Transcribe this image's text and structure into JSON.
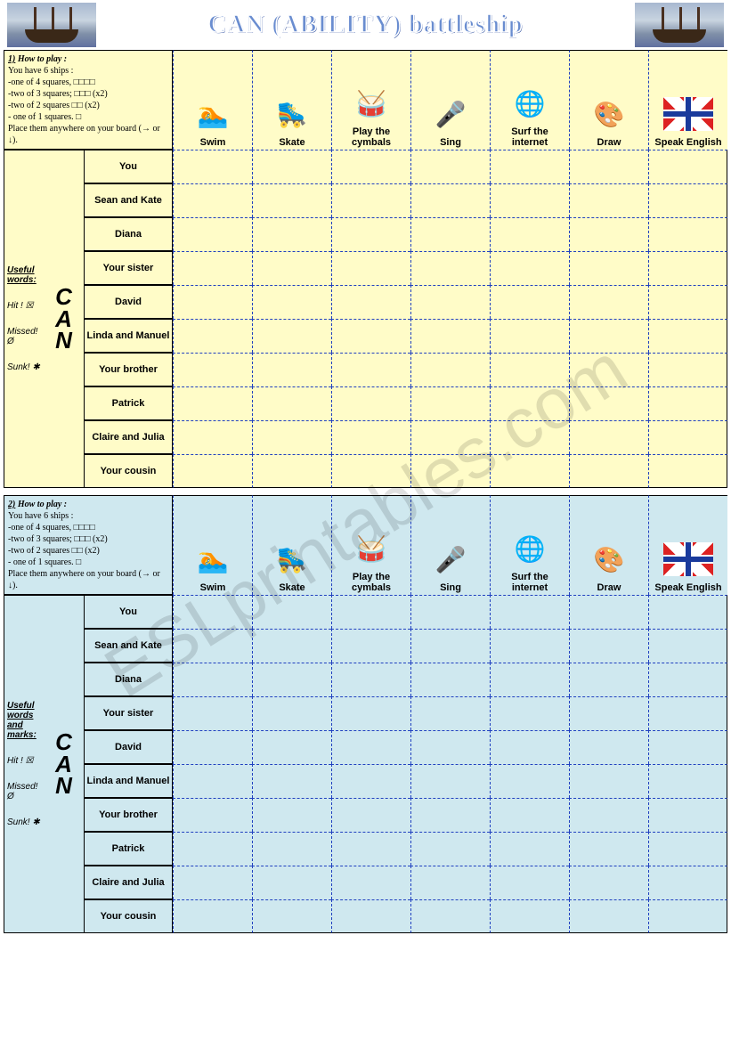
{
  "title": "CAN (ABILITY) battleship",
  "watermark": "ESLprintables.com",
  "activities": [
    {
      "label": "Swim",
      "icon": "🏊"
    },
    {
      "label": "Skate",
      "icon": "🛼"
    },
    {
      "label": "Play the cymbals",
      "icon": "🥁"
    },
    {
      "label": "Sing",
      "icon": "🎤"
    },
    {
      "label": "Surf the internet",
      "icon": "🌐"
    },
    {
      "label": "Draw",
      "icon": "🎨"
    },
    {
      "label": "Speak English",
      "icon": "flag"
    }
  ],
  "subjects": [
    "You",
    "Sean  and Kate",
    "Diana",
    "Your sister",
    "David",
    "Linda and Manuel",
    "Your brother",
    "Patrick",
    "Claire and Julia",
    "Your cousin"
  ],
  "cards": [
    {
      "num": "1)",
      "bg": "yellow",
      "instructions": [
        "How to play :",
        "You have 6 ships :",
        "-one of 4 squares, □□□□",
        "-two  of 3 squares; □□□ (x2)",
        "-two of  2 squares □□ (x2)",
        "- one  of 1 squares. □",
        "Place them anywhere on your board (→ or ↓)."
      ],
      "useful_label": "Useful words:",
      "useful": [
        "Hit ! ☒",
        "Missed! Ø",
        "Sunk! ✱"
      ]
    },
    {
      "num": "2)",
      "bg": "blue",
      "instructions": [
        "How to play :",
        "You have 6 ships :",
        "-one of 4 squares, □□□□",
        "-two  of 3 squares; □□□ (x2)",
        "-two of  2 squares □□ (x2)",
        "- one  of 1 squares. □",
        "Place them anywhere on your board (→ or ↓)."
      ],
      "useful_label": "Useful words and marks:",
      "useful": [
        "Hit ! ☒",
        "Missed! Ø",
        "Sunk! ✱"
      ]
    }
  ],
  "can_label": "C\nA\nN",
  "colors": {
    "yellow_bg": "#fffcc8",
    "blue_bg": "#cfe8ef",
    "dash": "#2040c0",
    "title_fill": "#6a8dd0"
  }
}
